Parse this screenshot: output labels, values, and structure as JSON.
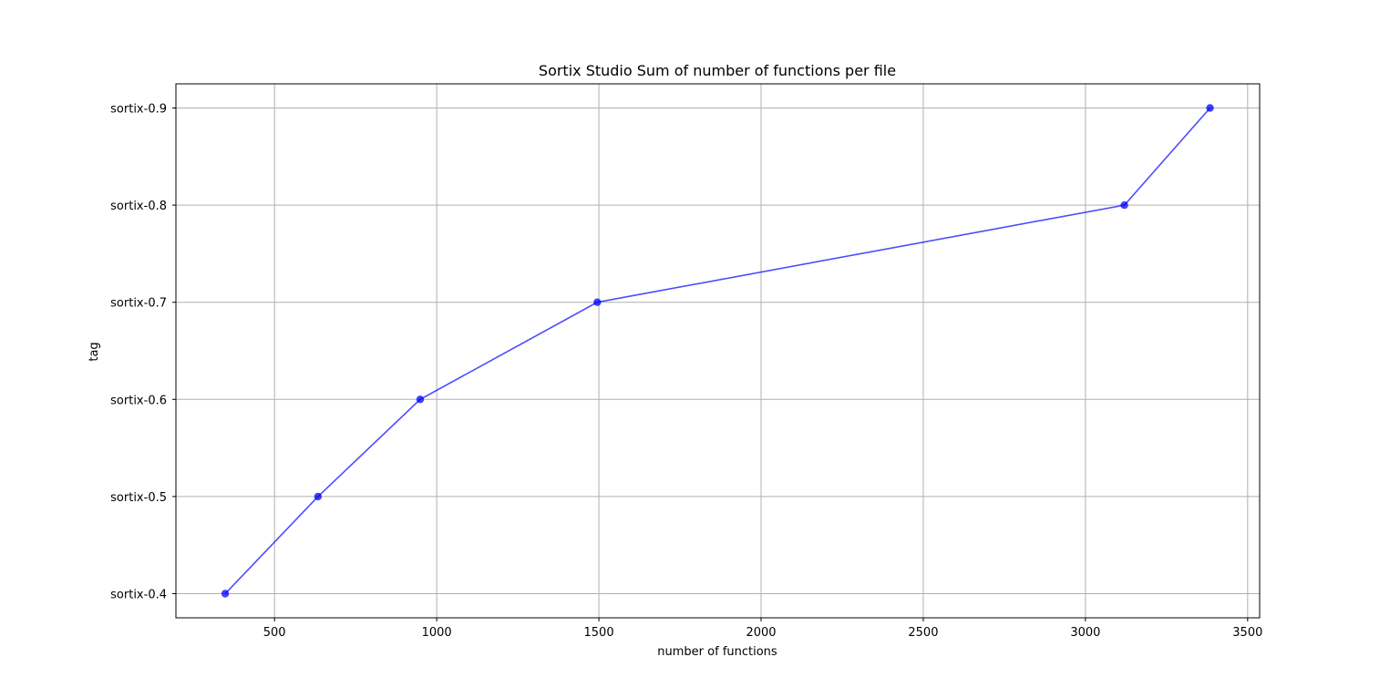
{
  "chart_data": {
    "type": "line",
    "title": "Sortix Studio Sum of number of functions per file",
    "xlabel": "number of functions",
    "ylabel": "tag",
    "xlim": [
      196,
      3537
    ],
    "x_ticks": [
      500,
      1000,
      1500,
      2000,
      2500,
      3000,
      3500
    ],
    "categories": [
      "sortix-0.4",
      "sortix-0.5",
      "sortix-0.6",
      "sortix-0.7",
      "sortix-0.8",
      "sortix-0.9"
    ],
    "series": [
      {
        "color": "#0000ff",
        "marker": "circle",
        "points": [
          {
            "x": 348,
            "y": "sortix-0.4"
          },
          {
            "x": 634,
            "y": "sortix-0.5"
          },
          {
            "x": 949,
            "y": "sortix-0.6"
          },
          {
            "x": 1495,
            "y": "sortix-0.7"
          },
          {
            "x": 3120,
            "y": "sortix-0.8"
          },
          {
            "x": 3384,
            "y": "sortix-0.9"
          }
        ]
      }
    ],
    "grid": true,
    "legend": "none"
  }
}
